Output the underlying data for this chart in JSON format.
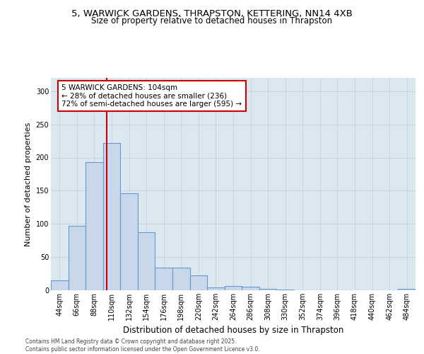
{
  "title_line1": "5, WARWICK GARDENS, THRAPSTON, KETTERING, NN14 4XB",
  "title_line2": "Size of property relative to detached houses in Thrapston",
  "xlabel": "Distribution of detached houses by size in Thrapston",
  "ylabel": "Number of detached properties",
  "categories": [
    "44sqm",
    "66sqm",
    "88sqm",
    "110sqm",
    "132sqm",
    "154sqm",
    "176sqm",
    "198sqm",
    "220sqm",
    "242sqm",
    "264sqm",
    "286sqm",
    "308sqm",
    "330sqm",
    "352sqm",
    "374sqm",
    "396sqm",
    "418sqm",
    "440sqm",
    "462sqm",
    "484sqm"
  ],
  "values": [
    15,
    97,
    193,
    222,
    146,
    88,
    34,
    34,
    22,
    4,
    6,
    5,
    2,
    1,
    0,
    0,
    0,
    0,
    0,
    0,
    2
  ],
  "bar_color": "#c8d8ea",
  "bar_edge_color": "#6699cc",
  "annotation_text": "5 WARWICK GARDENS: 104sqm\n← 28% of detached houses are smaller (236)\n72% of semi-detached houses are larger (595) →",
  "annotation_box_color": "#ffffff",
  "annotation_box_edge_color": "#cc0000",
  "vline_color": "#cc0000",
  "grid_color": "#c5d5e5",
  "background_color": "#dce8f0",
  "footer_text": "Contains HM Land Registry data © Crown copyright and database right 2025.\nContains public sector information licensed under the Open Government Licence v3.0.",
  "ylim": [
    0,
    320
  ],
  "title1_fontsize": 9.5,
  "title2_fontsize": 8.5,
  "ylabel_fontsize": 8,
  "xlabel_fontsize": 8.5,
  "tick_fontsize": 7,
  "annotation_fontsize": 7.5,
  "footer_fontsize": 5.5
}
